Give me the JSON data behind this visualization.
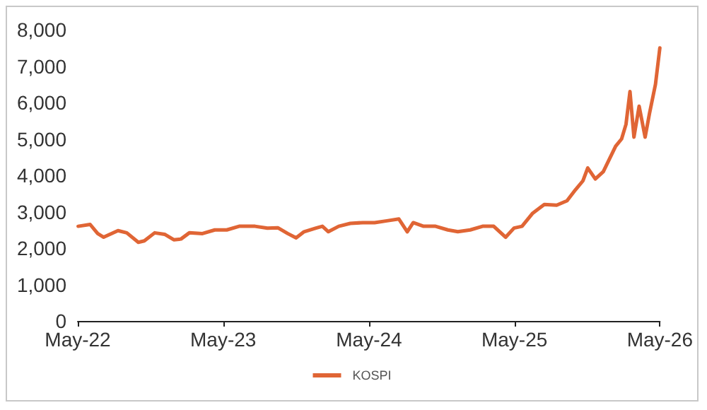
{
  "chart_data": {
    "type": "line",
    "x": [
      "2022-05-02",
      "2022-06-01",
      "2022-06-20",
      "2022-07-05",
      "2022-08-10",
      "2022-09-01",
      "2022-09-30",
      "2022-10-15",
      "2022-11-10",
      "2022-12-05",
      "2022-12-28",
      "2023-01-15",
      "2023-02-05",
      "2023-03-10",
      "2023-04-10",
      "2023-05-10",
      "2023-06-10",
      "2023-07-20",
      "2023-08-20",
      "2023-09-15",
      "2023-10-10",
      "2023-10-31",
      "2023-11-20",
      "2023-12-20",
      "2024-01-05",
      "2024-01-20",
      "2024-02-15",
      "2024-03-15",
      "2024-04-15",
      "2024-05-15",
      "2024-06-15",
      "2024-07-15",
      "2024-08-05",
      "2024-08-20",
      "2024-09-15",
      "2024-10-15",
      "2024-11-15",
      "2024-12-10",
      "2025-01-10",
      "2025-02-10",
      "2025-03-10",
      "2025-04-09",
      "2025-04-30",
      "2025-05-20",
      "2025-06-15",
      "2025-07-15",
      "2025-08-15",
      "2025-09-10",
      "2025-10-01",
      "2025-10-20",
      "2025-11-01",
      "2025-11-20",
      "2025-12-10",
      "2026-01-10",
      "2026-01-25",
      "2026-02-05",
      "2026-02-15",
      "2026-02-25",
      "2026-03-10",
      "2026-03-25",
      "2026-04-05",
      "2026-04-20",
      "2026-05-01"
    ],
    "series": [
      {
        "name": "KOSPI",
        "color": "#e06535",
        "values": [
          2600,
          2650,
          2400,
          2300,
          2480,
          2420,
          2160,
          2200,
          2420,
          2380,
          2230,
          2250,
          2420,
          2400,
          2500,
          2500,
          2600,
          2600,
          2550,
          2560,
          2400,
          2280,
          2450,
          2550,
          2600,
          2450,
          2600,
          2680,
          2700,
          2700,
          2750,
          2800,
          2450,
          2700,
          2600,
          2600,
          2500,
          2450,
          2500,
          2600,
          2600,
          2300,
          2550,
          2600,
          2950,
          3200,
          3180,
          3300,
          3600,
          3850,
          4200,
          3900,
          4100,
          4800,
          5000,
          5400,
          6300,
          5050,
          5900,
          5050,
          5700,
          6500,
          7500
        ]
      }
    ],
    "xlim": [
      "2022-05-01",
      "2026-05-01"
    ],
    "xticks": [
      {
        "value": "2022-05-01",
        "label": "May-22"
      },
      {
        "value": "2023-05-01",
        "label": "May-23"
      },
      {
        "value": "2024-05-01",
        "label": "May-24"
      },
      {
        "value": "2025-05-01",
        "label": "May-25"
      },
      {
        "value": "2026-05-01",
        "label": "May-26"
      }
    ],
    "ylim": [
      0,
      8000
    ],
    "yticks": [
      {
        "value": 0,
        "label": "0"
      },
      {
        "value": 1000,
        "label": "1,000"
      },
      {
        "value": 2000,
        "label": "2,000"
      },
      {
        "value": 3000,
        "label": "3,000"
      },
      {
        "value": 4000,
        "label": "4,000"
      },
      {
        "value": 5000,
        "label": "5,000"
      },
      {
        "value": 6000,
        "label": "6,000"
      },
      {
        "value": 7000,
        "label": "7,000"
      },
      {
        "value": 8000,
        "label": "8,000"
      }
    ],
    "grid": false,
    "legend": "bottom",
    "marker": "none",
    "line_style": "solid"
  }
}
